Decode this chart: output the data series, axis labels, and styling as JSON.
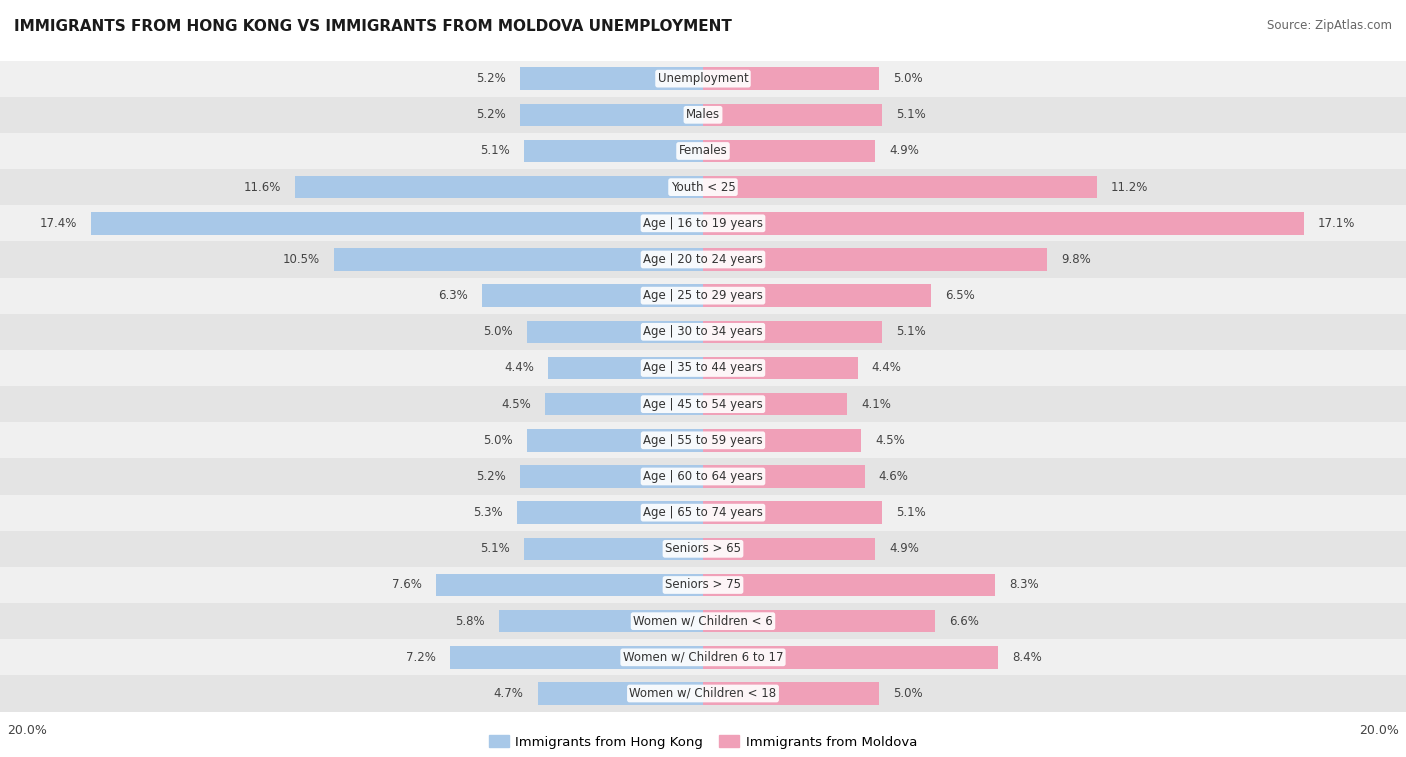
{
  "title": "IMMIGRANTS FROM HONG KONG VS IMMIGRANTS FROM MOLDOVA UNEMPLOYMENT",
  "source": "Source: ZipAtlas.com",
  "categories": [
    "Unemployment",
    "Males",
    "Females",
    "Youth < 25",
    "Age | 16 to 19 years",
    "Age | 20 to 24 years",
    "Age | 25 to 29 years",
    "Age | 30 to 34 years",
    "Age | 35 to 44 years",
    "Age | 45 to 54 years",
    "Age | 55 to 59 years",
    "Age | 60 to 64 years",
    "Age | 65 to 74 years",
    "Seniors > 65",
    "Seniors > 75",
    "Women w/ Children < 6",
    "Women w/ Children 6 to 17",
    "Women w/ Children < 18"
  ],
  "hong_kong": [
    5.2,
    5.2,
    5.1,
    11.6,
    17.4,
    10.5,
    6.3,
    5.0,
    4.4,
    4.5,
    5.0,
    5.2,
    5.3,
    5.1,
    7.6,
    5.8,
    7.2,
    4.7
  ],
  "moldova": [
    5.0,
    5.1,
    4.9,
    11.2,
    17.1,
    9.8,
    6.5,
    5.1,
    4.4,
    4.1,
    4.5,
    4.6,
    5.1,
    4.9,
    8.3,
    6.6,
    8.4,
    5.0
  ],
  "max_val": 20.0,
  "hk_color": "#a8c8e8",
  "md_color": "#f0a0b8",
  "bg_row_even": "#f0f0f0",
  "bg_row_odd": "#e4e4e4",
  "legend_hk": "Immigrants from Hong Kong",
  "legend_md": "Immigrants from Moldova",
  "axis_label_val": "20.0%"
}
